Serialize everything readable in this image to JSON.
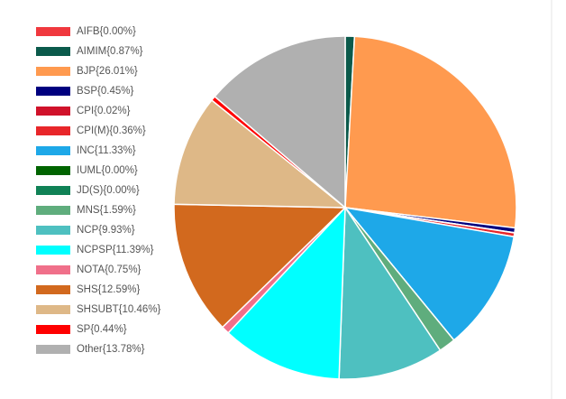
{
  "chart_data": {
    "type": "pie",
    "categories": [
      "AIFB{0.00%}",
      "AIMIM{0.87%}",
      "BJP{26.01%}",
      "BSP{0.45%}",
      "CPI{0.02%}",
      "CPI(M){0.36%}",
      "INC{11.33%}",
      "IUML{0.00%}",
      "JD(S){0.00%}",
      "MNS{1.59%}",
      "NCP{9.93%}",
      "NCPSP{11.39%}",
      "NOTA{0.75%}",
      "SHS{12.59%}",
      "SHSUBT{10.46%}",
      "SP{0.44%}",
      "Other{13.78%}"
    ],
    "values": [
      0.0,
      0.87,
      26.01,
      0.45,
      0.02,
      0.36,
      11.33,
      0.0,
      0.0,
      1.59,
      9.93,
      11.39,
      0.75,
      12.59,
      10.46,
      0.44,
      13.78
    ],
    "colors": [
      "#f0383e",
      "#0b5a4b",
      "#ff9a4f",
      "#00007f",
      "#d0122a",
      "#e8262a",
      "#1ea8e8",
      "#006400",
      "#108256",
      "#5fad7d",
      "#4ec0c0",
      "#00ffff",
      "#f0708a",
      "#d2691e",
      "#deb887",
      "#ff0000",
      "#b0b0b0"
    ],
    "legend": "left"
  }
}
